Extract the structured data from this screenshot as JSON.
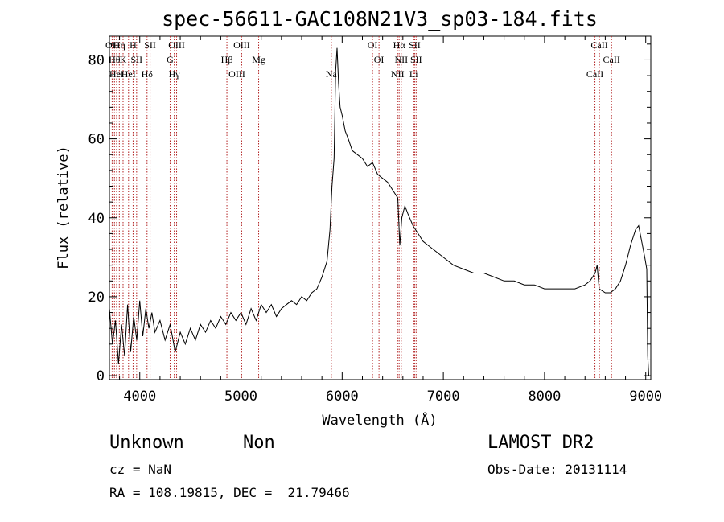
{
  "chart_data": {
    "type": "line",
    "title": "spec-56611-GAC108N21V3_sp03-184.fits",
    "xlabel": "Wavelength (Å)",
    "ylabel": "Flux (relative)",
    "xlim": [
      3700,
      9050
    ],
    "ylim": [
      -1,
      86
    ],
    "x_ticks": [
      4000,
      5000,
      6000,
      7000,
      8000,
      9000
    ],
    "y_ticks": [
      0,
      20,
      40,
      60,
      80
    ],
    "grid": false,
    "series": [
      {
        "points": [
          [
            3700,
            17
          ],
          [
            3730,
            8
          ],
          [
            3760,
            14
          ],
          [
            3790,
            3
          ],
          [
            3820,
            13
          ],
          [
            3850,
            5
          ],
          [
            3880,
            18
          ],
          [
            3910,
            6
          ],
          [
            3940,
            15
          ],
          [
            3970,
            9
          ],
          [
            4000,
            19
          ],
          [
            4030,
            10
          ],
          [
            4060,
            17
          ],
          [
            4090,
            12
          ],
          [
            4120,
            16
          ],
          [
            4150,
            11
          ],
          [
            4200,
            14
          ],
          [
            4250,
            9
          ],
          [
            4300,
            13
          ],
          [
            4350,
            6
          ],
          [
            4400,
            11
          ],
          [
            4450,
            8
          ],
          [
            4500,
            12
          ],
          [
            4550,
            9
          ],
          [
            4600,
            13
          ],
          [
            4650,
            11
          ],
          [
            4700,
            14
          ],
          [
            4750,
            12
          ],
          [
            4800,
            15
          ],
          [
            4850,
            13
          ],
          [
            4900,
            16
          ],
          [
            4950,
            14
          ],
          [
            5000,
            16
          ],
          [
            5050,
            13
          ],
          [
            5100,
            17
          ],
          [
            5150,
            14
          ],
          [
            5200,
            18
          ],
          [
            5250,
            16
          ],
          [
            5300,
            18
          ],
          [
            5350,
            15
          ],
          [
            5400,
            17
          ],
          [
            5450,
            18
          ],
          [
            5500,
            19
          ],
          [
            5550,
            18
          ],
          [
            5600,
            20
          ],
          [
            5650,
            19
          ],
          [
            5700,
            21
          ],
          [
            5750,
            22
          ],
          [
            5800,
            25
          ],
          [
            5850,
            29
          ],
          [
            5880,
            37
          ],
          [
            5900,
            48
          ],
          [
            5920,
            55
          ],
          [
            5935,
            77
          ],
          [
            5950,
            83
          ],
          [
            5965,
            74
          ],
          [
            5980,
            68
          ],
          [
            6000,
            66
          ],
          [
            6030,
            62
          ],
          [
            6060,
            60
          ],
          [
            6100,
            57
          ],
          [
            6150,
            56
          ],
          [
            6200,
            55
          ],
          [
            6250,
            53
          ],
          [
            6300,
            54
          ],
          [
            6350,
            51
          ],
          [
            6400,
            50
          ],
          [
            6450,
            49
          ],
          [
            6500,
            47
          ],
          [
            6550,
            45
          ],
          [
            6570,
            33
          ],
          [
            6590,
            40
          ],
          [
            6620,
            43
          ],
          [
            6650,
            41
          ],
          [
            6700,
            38
          ],
          [
            6750,
            36
          ],
          [
            6800,
            34
          ],
          [
            6850,
            33
          ],
          [
            6900,
            32
          ],
          [
            6950,
            31
          ],
          [
            7000,
            30
          ],
          [
            7100,
            28
          ],
          [
            7200,
            27
          ],
          [
            7300,
            26
          ],
          [
            7400,
            26
          ],
          [
            7500,
            25
          ],
          [
            7600,
            24
          ],
          [
            7700,
            24
          ],
          [
            7800,
            23
          ],
          [
            7900,
            23
          ],
          [
            8000,
            22
          ],
          [
            8100,
            22
          ],
          [
            8200,
            22
          ],
          [
            8300,
            22
          ],
          [
            8400,
            23
          ],
          [
            8450,
            24
          ],
          [
            8500,
            26
          ],
          [
            8520,
            28
          ],
          [
            8540,
            22
          ],
          [
            8600,
            21
          ],
          [
            8650,
            21
          ],
          [
            8700,
            22
          ],
          [
            8750,
            24
          ],
          [
            8800,
            28
          ],
          [
            8850,
            33
          ],
          [
            8900,
            37
          ],
          [
            8930,
            38
          ],
          [
            8960,
            34
          ],
          [
            8990,
            30
          ],
          [
            9010,
            27
          ],
          [
            9020,
            5
          ],
          [
            9030,
            0
          ]
        ]
      }
    ],
    "lines": [
      {
        "x": 3727,
        "label": "OII"
      },
      {
        "x": 3750,
        "label": "Hθ"
      },
      {
        "x": 3771,
        "label": "HeI"
      },
      {
        "x": 3798,
        "label": "Hη"
      },
      {
        "x": 3835,
        "label": "K"
      },
      {
        "x": 3889,
        "label": "HeI"
      },
      {
        "x": 3934,
        "label": "H"
      },
      {
        "x": 3969,
        "label": "SII"
      },
      {
        "x": 4072,
        "label": "Hδ"
      },
      {
        "x": 4102,
        "label": "SII"
      },
      {
        "x": 4300,
        "label": "G"
      },
      {
        "x": 4341,
        "label": "Hγ"
      },
      {
        "x": 4364,
        "label": "OIII"
      },
      {
        "x": 4861,
        "label": "Hβ"
      },
      {
        "x": 4960,
        "label": "OIII"
      },
      {
        "x": 5007,
        "label": "OIII"
      },
      {
        "x": 5175,
        "label": "Mg"
      },
      {
        "x": 5893,
        "label": "Na"
      },
      {
        "x": 6300,
        "label": "OI"
      },
      {
        "x": 6364,
        "label": "OI"
      },
      {
        "x": 6548,
        "label": "NII"
      },
      {
        "x": 6563,
        "label": "Hα"
      },
      {
        "x": 6584,
        "label": "NII"
      },
      {
        "x": 6707,
        "label": "Li"
      },
      {
        "x": 6716,
        "label": "SII"
      },
      {
        "x": 6731,
        "label": "SII"
      },
      {
        "x": 8498,
        "label": "CaII"
      },
      {
        "x": 8542,
        "label": "CaII"
      },
      {
        "x": 8662,
        "label": "CaII"
      }
    ]
  },
  "info": {
    "object_class": "Unknown",
    "subclass": "Non",
    "survey": "LAMOST DR2",
    "redshift": "cz = NaN",
    "obs_date": "Obs-Date: 20131114",
    "coords": "RA = 108.19815, DEC =  21.79466"
  }
}
